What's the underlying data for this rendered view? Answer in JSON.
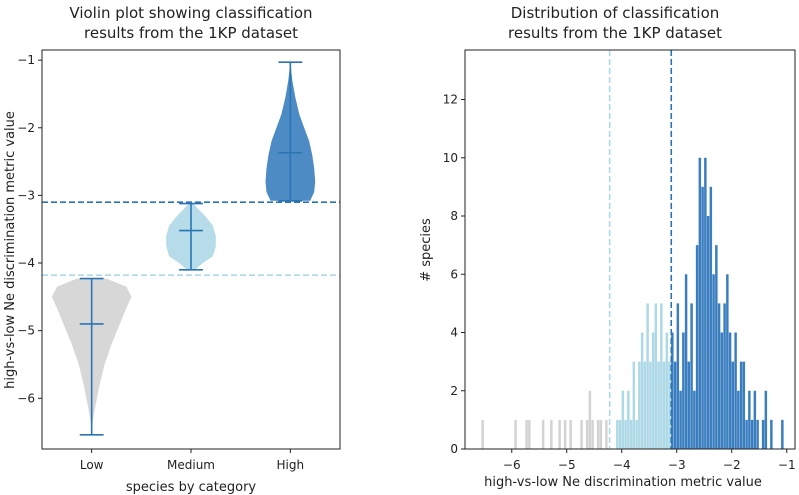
{
  "chart_data": [
    {
      "type": "violin",
      "title_lines": [
        "Violin plot showing classification",
        "results from the 1KP dataset"
      ],
      "xlabel": "species by category",
      "ylabel": "high-vs-low Ne discrimination metric value",
      "categories": [
        "Low",
        "Medium",
        "High"
      ],
      "ylim": [
        -6.75,
        -0.85
      ],
      "yticks": [
        -6,
        -5,
        -4,
        -3,
        -2,
        -1
      ],
      "ytick_labels": [
        "−6",
        "−5",
        "−4",
        "−3",
        "−2",
        "−1"
      ],
      "colors": {
        "Low": "#d3d3d3",
        "Medium": "#add8e6",
        "High": "#3a7ebf",
        "lines": "#2b75b5"
      },
      "violins": [
        {
          "name": "Low",
          "min": -6.54,
          "max": -4.23,
          "mean": -4.9,
          "profile": [
            [
              -6.54,
              0.0
            ],
            [
              -6.35,
              0.01
            ],
            [
              -6.1,
              0.04
            ],
            [
              -5.8,
              0.08
            ],
            [
              -5.5,
              0.13
            ],
            [
              -5.2,
              0.2
            ],
            [
              -4.95,
              0.27
            ],
            [
              -4.7,
              0.34
            ],
            [
              -4.5,
              0.4
            ],
            [
              -4.35,
              0.35
            ],
            [
              -4.23,
              0.15
            ]
          ]
        },
        {
          "name": "Medium",
          "min": -4.1,
          "max": -3.12,
          "mean": -3.52,
          "profile": [
            [
              -4.1,
              0.04
            ],
            [
              -4.0,
              0.12
            ],
            [
              -3.9,
              0.22
            ],
            [
              -3.75,
              0.25
            ],
            [
              -3.6,
              0.25
            ],
            [
              -3.45,
              0.22
            ],
            [
              -3.3,
              0.14
            ],
            [
              -3.2,
              0.07
            ],
            [
              -3.12,
              0.02
            ]
          ]
        },
        {
          "name": "High",
          "min": -3.08,
          "max": -1.03,
          "mean": -2.37,
          "profile": [
            [
              -3.08,
              0.2
            ],
            [
              -2.95,
              0.24
            ],
            [
              -2.8,
              0.25
            ],
            [
              -2.6,
              0.24
            ],
            [
              -2.4,
              0.22
            ],
            [
              -2.2,
              0.19
            ],
            [
              -2.0,
              0.14
            ],
            [
              -1.8,
              0.09
            ],
            [
              -1.55,
              0.05
            ],
            [
              -1.3,
              0.02
            ],
            [
              -1.03,
              0.0
            ]
          ]
        }
      ],
      "hlines": [
        {
          "y": -3.1,
          "color": "#2b75b5",
          "style": "dashed"
        },
        {
          "y": -4.18,
          "color": "#add8e6",
          "style": "dashed"
        }
      ]
    },
    {
      "type": "histogram",
      "title_lines": [
        "Distribution of classification",
        "results from the 1KP dataset"
      ],
      "xlabel": "high-vs-low Ne discrimination metric value",
      "ylabel": "# species",
      "xlim": [
        -6.85,
        -0.85
      ],
      "ylim": [
        0,
        13.7
      ],
      "xticks": [
        -6,
        -5,
        -4,
        -3,
        -2,
        -1
      ],
      "xtick_labels": [
        "−6",
        "−5",
        "−4",
        "−3",
        "−2",
        "−1"
      ],
      "yticks": [
        0,
        2,
        4,
        6,
        8,
        10,
        12
      ],
      "ytick_labels": [
        "0",
        "2",
        "4",
        "6",
        "8",
        "10",
        "12"
      ],
      "bin_width": 0.045,
      "series": [
        {
          "name": "Low",
          "color": "#d3d3d3",
          "bars": [
            [
              -6.53,
              1
            ],
            [
              -5.93,
              1
            ],
            [
              -5.73,
              1
            ],
            [
              -5.68,
              1
            ],
            [
              -5.43,
              1
            ],
            [
              -5.28,
              1
            ],
            [
              -5.13,
              1
            ],
            [
              -5.03,
              1
            ],
            [
              -4.93,
              1
            ],
            [
              -4.73,
              1
            ],
            [
              -4.63,
              1
            ],
            [
              -4.58,
              2
            ],
            [
              -4.53,
              1
            ],
            [
              -4.43,
              1
            ],
            [
              -4.38,
              1
            ],
            [
              -4.28,
              1
            ]
          ]
        },
        {
          "name": "Medium",
          "color": "#add8e6",
          "bars": [
            [
              -4.08,
              1
            ],
            [
              -4.03,
              1
            ],
            [
              -3.98,
              2
            ],
            [
              -3.93,
              1
            ],
            [
              -3.88,
              2
            ],
            [
              -3.83,
              1
            ],
            [
              -3.78,
              3
            ],
            [
              -3.73,
              1
            ],
            [
              -3.68,
              3
            ],
            [
              -3.63,
              4
            ],
            [
              -3.58,
              3
            ],
            [
              -3.53,
              5
            ],
            [
              -3.48,
              3
            ],
            [
              -3.43,
              4
            ],
            [
              -3.38,
              5
            ],
            [
              -3.33,
              3
            ],
            [
              -3.28,
              5
            ],
            [
              -3.23,
              3
            ],
            [
              -3.18,
              4
            ],
            [
              -3.13,
              3
            ]
          ]
        },
        {
          "name": "High",
          "color": "#3a7ebf",
          "bars": [
            [
              -3.08,
              4
            ],
            [
              -3.03,
              3
            ],
            [
              -2.98,
              5
            ],
            [
              -2.93,
              2
            ],
            [
              -2.88,
              4
            ],
            [
              -2.83,
              6
            ],
            [
              -2.78,
              3
            ],
            [
              -2.73,
              5
            ],
            [
              -2.68,
              2
            ],
            [
              -2.63,
              7
            ],
            [
              -2.58,
              10
            ],
            [
              -2.53,
              9
            ],
            [
              -2.48,
              10
            ],
            [
              -2.43,
              8
            ],
            [
              -2.38,
              9
            ],
            [
              -2.33,
              6
            ],
            [
              -2.28,
              7
            ],
            [
              -2.23,
              5
            ],
            [
              -2.18,
              4
            ],
            [
              -2.13,
              5
            ],
            [
              -2.08,
              6
            ],
            [
              -2.03,
              4
            ],
            [
              -1.98,
              3
            ],
            [
              -1.93,
              4
            ],
            [
              -1.88,
              2
            ],
            [
              -1.83,
              3
            ],
            [
              -1.78,
              3
            ],
            [
              -1.73,
              1
            ],
            [
              -1.68,
              2
            ],
            [
              -1.63,
              1
            ],
            [
              -1.58,
              2
            ],
            [
              -1.53,
              1
            ],
            [
              -1.43,
              1
            ],
            [
              -1.38,
              2
            ],
            [
              -1.28,
              1
            ],
            [
              -1.08,
              1
            ]
          ]
        }
      ],
      "vlines": [
        {
          "x": -4.22,
          "color": "#add8e6",
          "style": "dashed"
        },
        {
          "x": -3.1,
          "color": "#2b75b5",
          "style": "dashed"
        }
      ]
    }
  ]
}
